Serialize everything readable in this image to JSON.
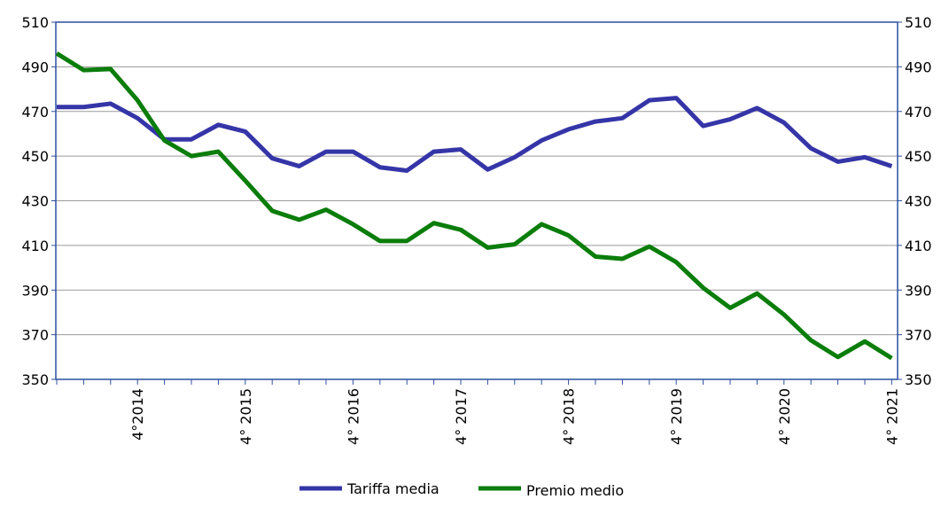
{
  "chart_data": {
    "type": "line",
    "categories": [
      null,
      null,
      null,
      "4°2014",
      null,
      null,
      null,
      "4° 2015",
      null,
      null,
      null,
      "4° 2016",
      null,
      null,
      null,
      "4° 2017",
      null,
      null,
      null,
      "4° 2018",
      null,
      null,
      null,
      "4° 2019",
      null,
      null,
      null,
      "4° 2020",
      null,
      null,
      null,
      "4° 2021"
    ],
    "series": [
      {
        "name": "Tariffa media",
        "color": "#3535a8",
        "values": [
          472,
          472,
          473.5,
          467,
          457.5,
          457.5,
          464,
          461,
          449,
          445.5,
          452,
          452,
          445,
          443.5,
          452,
          453,
          444,
          449.5,
          457,
          462,
          465.5,
          467,
          475,
          476,
          463.5,
          466.5,
          471.5,
          465,
          453.5,
          447.5,
          449.5,
          445.5
        ]
      },
      {
        "name": "Premio medio",
        "color": "#0a7d0a",
        "values": [
          496,
          488.5,
          489,
          475,
          457,
          450,
          452,
          439,
          425.5,
          421.5,
          426,
          419.5,
          412,
          412,
          420,
          417,
          409,
          410.5,
          419.5,
          414.5,
          405,
          404,
          409.5,
          402.5,
          391,
          382,
          388.5,
          379,
          367.5,
          360,
          367,
          359.5
        ]
      }
    ],
    "ylim": [
      350,
      510
    ],
    "yticks": [
      350,
      370,
      390,
      410,
      430,
      450,
      470,
      490,
      510
    ],
    "y2lim": [
      350,
      510
    ],
    "y2ticks": [
      350,
      370,
      390,
      410,
      430,
      450,
      470,
      490,
      510
    ],
    "grid": true,
    "legend": "bottom"
  }
}
